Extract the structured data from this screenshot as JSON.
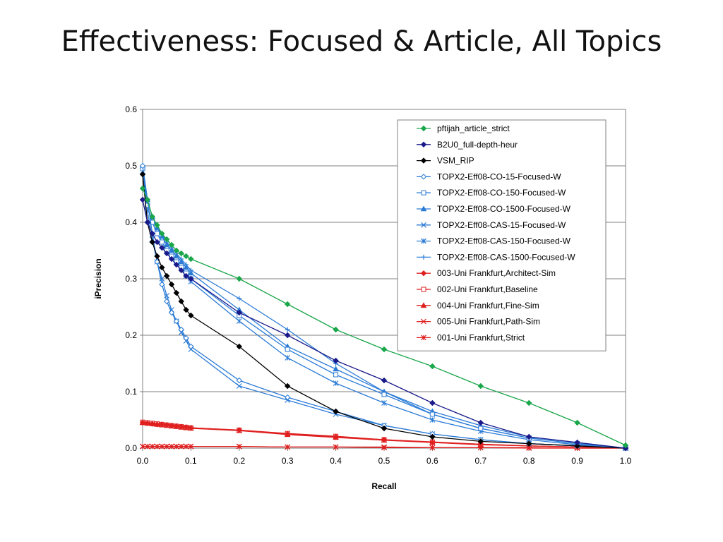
{
  "slide": {
    "title": "Effectiveness: Focused & Article, All Topics"
  },
  "chart_data": {
    "type": "line",
    "xlabel": "Recall",
    "ylabel": "iPrecision",
    "xlim": [
      0,
      1
    ],
    "ylim": [
      0,
      0.6
    ],
    "x_ticks": [
      "0.0",
      "0.1",
      "0.2",
      "0.3",
      "0.4",
      "0.5",
      "0.6",
      "0.7",
      "0.8",
      "0.9",
      "1.0"
    ],
    "y_ticks": [
      "0.0",
      "0.1",
      "0.2",
      "0.3",
      "0.4",
      "0.5",
      "0.6"
    ],
    "grid": "horizontal",
    "legend_position": "top-right",
    "x": [
      0,
      0.01,
      0.02,
      0.03,
      0.04,
      0.05,
      0.06,
      0.07,
      0.08,
      0.09,
      0.1,
      0.2,
      0.3,
      0.4,
      0.5,
      0.6,
      0.7,
      0.8,
      0.9,
      1.0
    ],
    "series": [
      {
        "name": "pftijah_article_strict",
        "color": "#1aa64a",
        "marker": "diamond",
        "values": [
          0.46,
          0.44,
          0.41,
          0.395,
          0.38,
          0.37,
          0.36,
          0.35,
          0.345,
          0.34,
          0.335,
          0.3,
          0.255,
          0.21,
          0.175,
          0.145,
          0.11,
          0.08,
          0.045,
          0.005
        ]
      },
      {
        "name": "B2U0_full-depth-heur",
        "color": "#1a1a8a",
        "marker": "diamond",
        "values": [
          0.44,
          0.4,
          0.38,
          0.365,
          0.355,
          0.345,
          0.335,
          0.325,
          0.315,
          0.305,
          0.3,
          0.24,
          0.2,
          0.155,
          0.12,
          0.08,
          0.045,
          0.02,
          0.01,
          0.0
        ]
      },
      {
        "name": "VSM_RIP",
        "color": "#000000",
        "marker": "diamond",
        "values": [
          0.485,
          0.4,
          0.365,
          0.34,
          0.32,
          0.305,
          0.29,
          0.275,
          0.26,
          0.245,
          0.235,
          0.18,
          0.11,
          0.065,
          0.035,
          0.02,
          0.012,
          0.008,
          0.004,
          0.0
        ]
      },
      {
        "name": "TOPX2-Eff08-CO-15-Focused-W",
        "color": "#2b7bd6",
        "marker": "diamond-open",
        "values": [
          0.5,
          0.44,
          0.38,
          0.33,
          0.29,
          0.26,
          0.24,
          0.225,
          0.21,
          0.195,
          0.18,
          0.12,
          0.09,
          0.065,
          0.04,
          0.025,
          0.015,
          0.008,
          0.004,
          0.0
        ]
      },
      {
        "name": "TOPX2-Eff08-CO-150-Focused-W",
        "color": "#2b7bd6",
        "marker": "square-open",
        "values": [
          0.495,
          0.43,
          0.4,
          0.38,
          0.365,
          0.35,
          0.34,
          0.33,
          0.32,
          0.31,
          0.3,
          0.235,
          0.175,
          0.13,
          0.095,
          0.06,
          0.035,
          0.018,
          0.008,
          0.0
        ]
      },
      {
        "name": "TOPX2-Eff08-CO-1500-Focused-W",
        "color": "#2b7bd6",
        "marker": "triangle",
        "values": [
          0.5,
          0.44,
          0.41,
          0.39,
          0.375,
          0.36,
          0.35,
          0.34,
          0.33,
          0.32,
          0.31,
          0.245,
          0.18,
          0.14,
          0.1,
          0.065,
          0.04,
          0.02,
          0.01,
          0.0
        ]
      },
      {
        "name": "TOPX2-Eff08-CAS-15-Focused-W",
        "color": "#2b7bd6",
        "marker": "x",
        "values": [
          0.49,
          0.42,
          0.37,
          0.33,
          0.3,
          0.27,
          0.245,
          0.225,
          0.205,
          0.19,
          0.175,
          0.11,
          0.085,
          0.06,
          0.04,
          0.025,
          0.015,
          0.008,
          0.004,
          0.0
        ]
      },
      {
        "name": "TOPX2-Eff08-CAS-150-Focused-W",
        "color": "#2b7bd6",
        "marker": "star",
        "values": [
          0.49,
          0.43,
          0.4,
          0.38,
          0.365,
          0.35,
          0.34,
          0.33,
          0.32,
          0.305,
          0.295,
          0.225,
          0.16,
          0.115,
          0.08,
          0.05,
          0.03,
          0.015,
          0.006,
          0.0
        ]
      },
      {
        "name": "TOPX2-Eff08-CAS-1500-Focused-W",
        "color": "#2b7bd6",
        "marker": "plus",
        "values": [
          0.5,
          0.44,
          0.41,
          0.39,
          0.38,
          0.365,
          0.355,
          0.345,
          0.335,
          0.325,
          0.315,
          0.265,
          0.21,
          0.15,
          0.1,
          0.06,
          0.035,
          0.018,
          0.008,
          0.0
        ]
      },
      {
        "name": "003-Uni Frankfurt,Architect-Sim",
        "color": "#e02020",
        "marker": "diamond",
        "values": [
          0.045,
          0.044,
          0.043,
          0.042,
          0.042,
          0.041,
          0.04,
          0.039,
          0.038,
          0.037,
          0.036,
          0.032,
          0.025,
          0.02,
          0.015,
          0.01,
          0.007,
          0.004,
          0.002,
          0.0
        ]
      },
      {
        "name": "002-Uni Frankfurt,Baseline",
        "color": "#e02020",
        "marker": "square-open",
        "values": [
          0.046,
          0.045,
          0.044,
          0.043,
          0.042,
          0.041,
          0.04,
          0.039,
          0.038,
          0.037,
          0.036,
          0.032,
          0.026,
          0.021,
          0.015,
          0.011,
          0.007,
          0.004,
          0.002,
          0.0
        ]
      },
      {
        "name": "004-Uni Frankfurt,Fine-Sim",
        "color": "#e02020",
        "marker": "triangle",
        "values": [
          0.045,
          0.044,
          0.043,
          0.042,
          0.041,
          0.04,
          0.039,
          0.038,
          0.037,
          0.036,
          0.035,
          0.031,
          0.024,
          0.019,
          0.014,
          0.01,
          0.006,
          0.004,
          0.002,
          0.0
        ]
      },
      {
        "name": "005-Uni Frankfurt,Path-Sim",
        "color": "#e02020",
        "marker": "x",
        "values": [
          0.003,
          0.003,
          0.003,
          0.003,
          0.003,
          0.003,
          0.003,
          0.003,
          0.003,
          0.003,
          0.003,
          0.003,
          0.002,
          0.002,
          0.002,
          0.001,
          0.001,
          0.001,
          0.0,
          0.0
        ]
      },
      {
        "name": "001-Uni Frankfurt,Strict",
        "color": "#e02020",
        "marker": "star",
        "values": [
          0.003,
          0.003,
          0.003,
          0.003,
          0.003,
          0.003,
          0.003,
          0.003,
          0.003,
          0.003,
          0.003,
          0.003,
          0.002,
          0.002,
          0.001,
          0.001,
          0.001,
          0.0,
          0.0,
          0.0
        ]
      }
    ]
  }
}
